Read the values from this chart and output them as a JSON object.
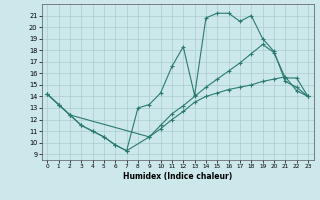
{
  "xlabel": "Humidex (Indice chaleur)",
  "xlim": [
    -0.5,
    23.5
  ],
  "ylim": [
    8.5,
    22.0
  ],
  "yticks": [
    9,
    10,
    11,
    12,
    13,
    14,
    15,
    16,
    17,
    18,
    19,
    20,
    21
  ],
  "xticks": [
    0,
    1,
    2,
    3,
    4,
    5,
    6,
    7,
    8,
    9,
    10,
    11,
    12,
    13,
    14,
    15,
    16,
    17,
    18,
    19,
    20,
    21,
    22,
    23
  ],
  "background_color": "#cce8ea",
  "grid_color": "#aaccce",
  "line_color": "#2a7a72",
  "line1_x": [
    0,
    1,
    2,
    3,
    4,
    5,
    6,
    7,
    8,
    9,
    10,
    11,
    12,
    13,
    14,
    15,
    16,
    17,
    18,
    19,
    20,
    21,
    22,
    23
  ],
  "line1_y": [
    14.2,
    13.3,
    12.4,
    11.5,
    11.0,
    10.5,
    9.8,
    9.3,
    13.0,
    13.3,
    14.3,
    16.6,
    18.3,
    14.1,
    20.8,
    21.2,
    21.2,
    20.5,
    21.0,
    19.0,
    17.9,
    15.3,
    14.8,
    14.0
  ],
  "line2_x": [
    0,
    1,
    2,
    3,
    4,
    5,
    6,
    7,
    9,
    10,
    11,
    12,
    13,
    14,
    15,
    16,
    17,
    18,
    19,
    20,
    21,
    22,
    23
  ],
  "line2_y": [
    14.2,
    13.3,
    12.4,
    11.5,
    11.0,
    10.5,
    9.8,
    9.3,
    10.5,
    11.5,
    12.5,
    13.2,
    14.0,
    14.8,
    15.5,
    16.2,
    16.9,
    17.7,
    18.5,
    17.8,
    15.6,
    15.6,
    14.0
  ],
  "line3_x": [
    0,
    1,
    2,
    9,
    10,
    11,
    12,
    13,
    14,
    15,
    16,
    17,
    18,
    19,
    20,
    21,
    22,
    23
  ],
  "line3_y": [
    14.2,
    13.3,
    12.4,
    10.5,
    11.2,
    12.0,
    12.7,
    13.5,
    14.0,
    14.3,
    14.6,
    14.8,
    15.0,
    15.3,
    15.5,
    15.7,
    14.5,
    14.0
  ]
}
